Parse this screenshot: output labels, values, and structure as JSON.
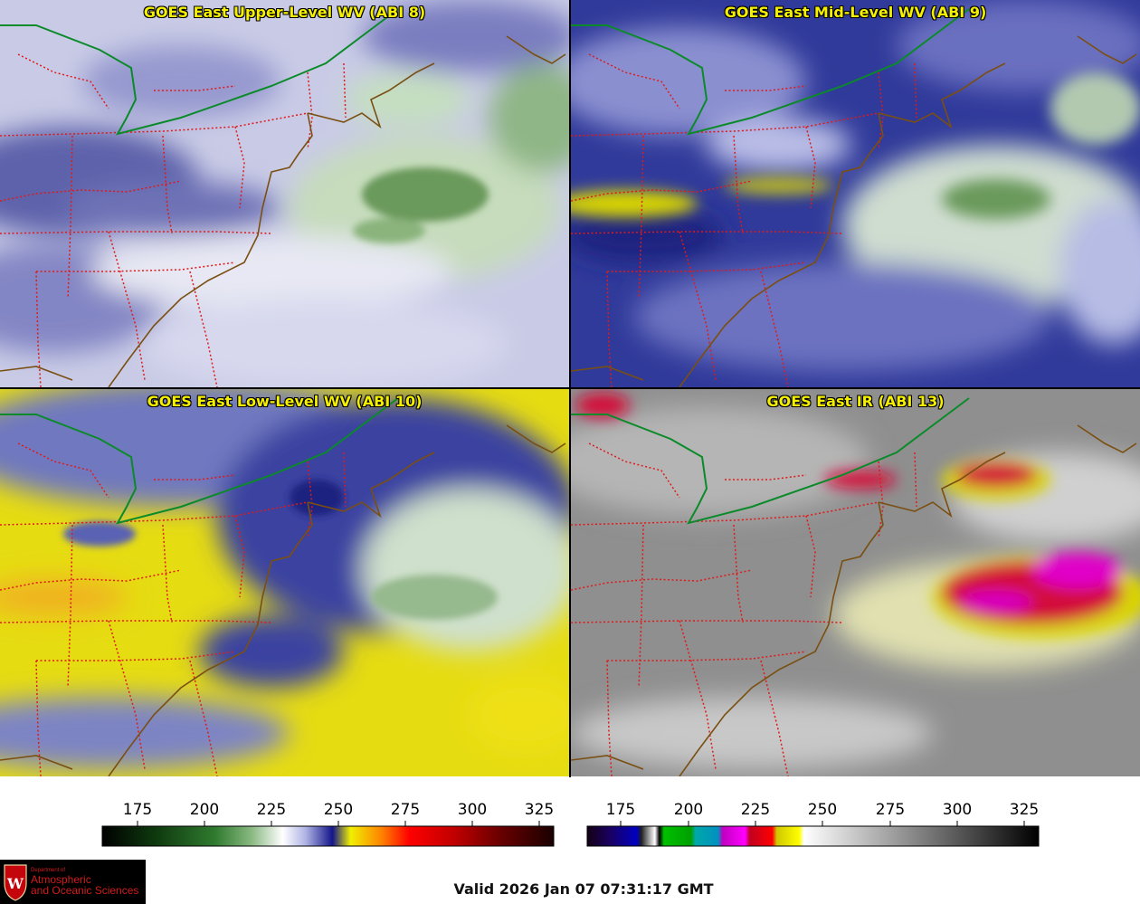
{
  "panels": [
    {
      "title": "GOES East Upper-Level WV (ABI 8)"
    },
    {
      "title": "GOES East Mid-Level WV (ABI 9)"
    },
    {
      "title": "GOES East Low-Level WV (ABI 10)"
    },
    {
      "title": "GOES East IR (ABI 13)"
    }
  ],
  "colorbars": [
    {
      "ticks": [
        "175",
        "200",
        "225",
        "250",
        "275",
        "300",
        "325"
      ]
    },
    {
      "ticks": [
        "175",
        "200",
        "225",
        "250",
        "275",
        "300",
        "325"
      ]
    }
  ],
  "colors": {
    "state_borders": "#e01a1a",
    "coastline": "#7a4f12",
    "international_border": "#0b8a2a",
    "title_yellow": "#f4f000"
  },
  "logo": {
    "line1": "Department of",
    "line2": "Atmospheric",
    "line3": "and Oceanic Sciences",
    "letter": "W"
  },
  "valid_text": "Valid 2026 Jan 07 07:31:17 GMT"
}
